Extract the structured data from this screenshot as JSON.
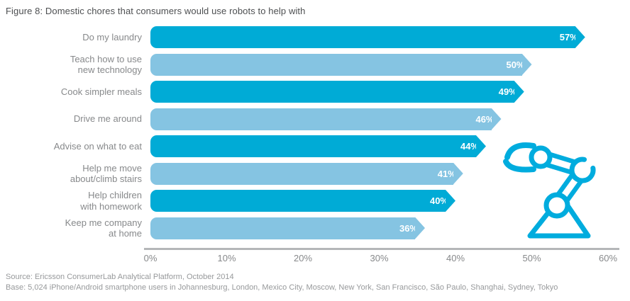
{
  "title": "Figure 8: Domestic chores that consumers would use robots to help with",
  "chart_data": {
    "type": "bar",
    "orientation": "horizontal",
    "title": "Figure 8: Domestic chores that consumers would use robots to help with",
    "categories": [
      "Do my laundry",
      "Teach how to use\nnew technology",
      "Cook simpler meals",
      "Drive me around",
      "Advise on what to eat",
      "Help me move\nabout/climb stairs",
      "Help children\nwith homework",
      "Keep me company\nat home"
    ],
    "values": [
      57,
      50,
      49,
      46,
      44,
      41,
      40,
      36
    ],
    "value_labels": [
      "57%",
      "50%",
      "49%",
      "46%",
      "44%",
      "41%",
      "40%",
      "36%"
    ],
    "x_ticks": [
      "0%",
      "10%",
      "20%",
      "30%",
      "40%",
      "50%",
      "60%"
    ],
    "xlim": [
      0,
      60
    ],
    "grid": false,
    "legend_position": "none",
    "bar_colors_alternating": [
      "#00abd6",
      "#85c4e2"
    ],
    "value_label_color": "#ffffff"
  },
  "icons": {
    "robot_arm": {
      "label": "robot-arm-icon",
      "color": "#00acde"
    }
  },
  "footer": {
    "source": "Source: Ericsson ConsumerLab Analytical Platform, October 2014",
    "base": "Base: 5,024 iPhone/Android smartphone users in Johannesburg, London, Mexico City, Moscow, New York, San Francisco, São Paulo, Shanghai, Sydney, Tokyo"
  },
  "colors": {
    "bar_dark": "#00abd6",
    "bar_light": "#85c4e2",
    "axis_line": "#b4b6b8",
    "label_gray": "#87898b",
    "title_gray": "#4d4f51",
    "source_gray": "#97999b"
  }
}
